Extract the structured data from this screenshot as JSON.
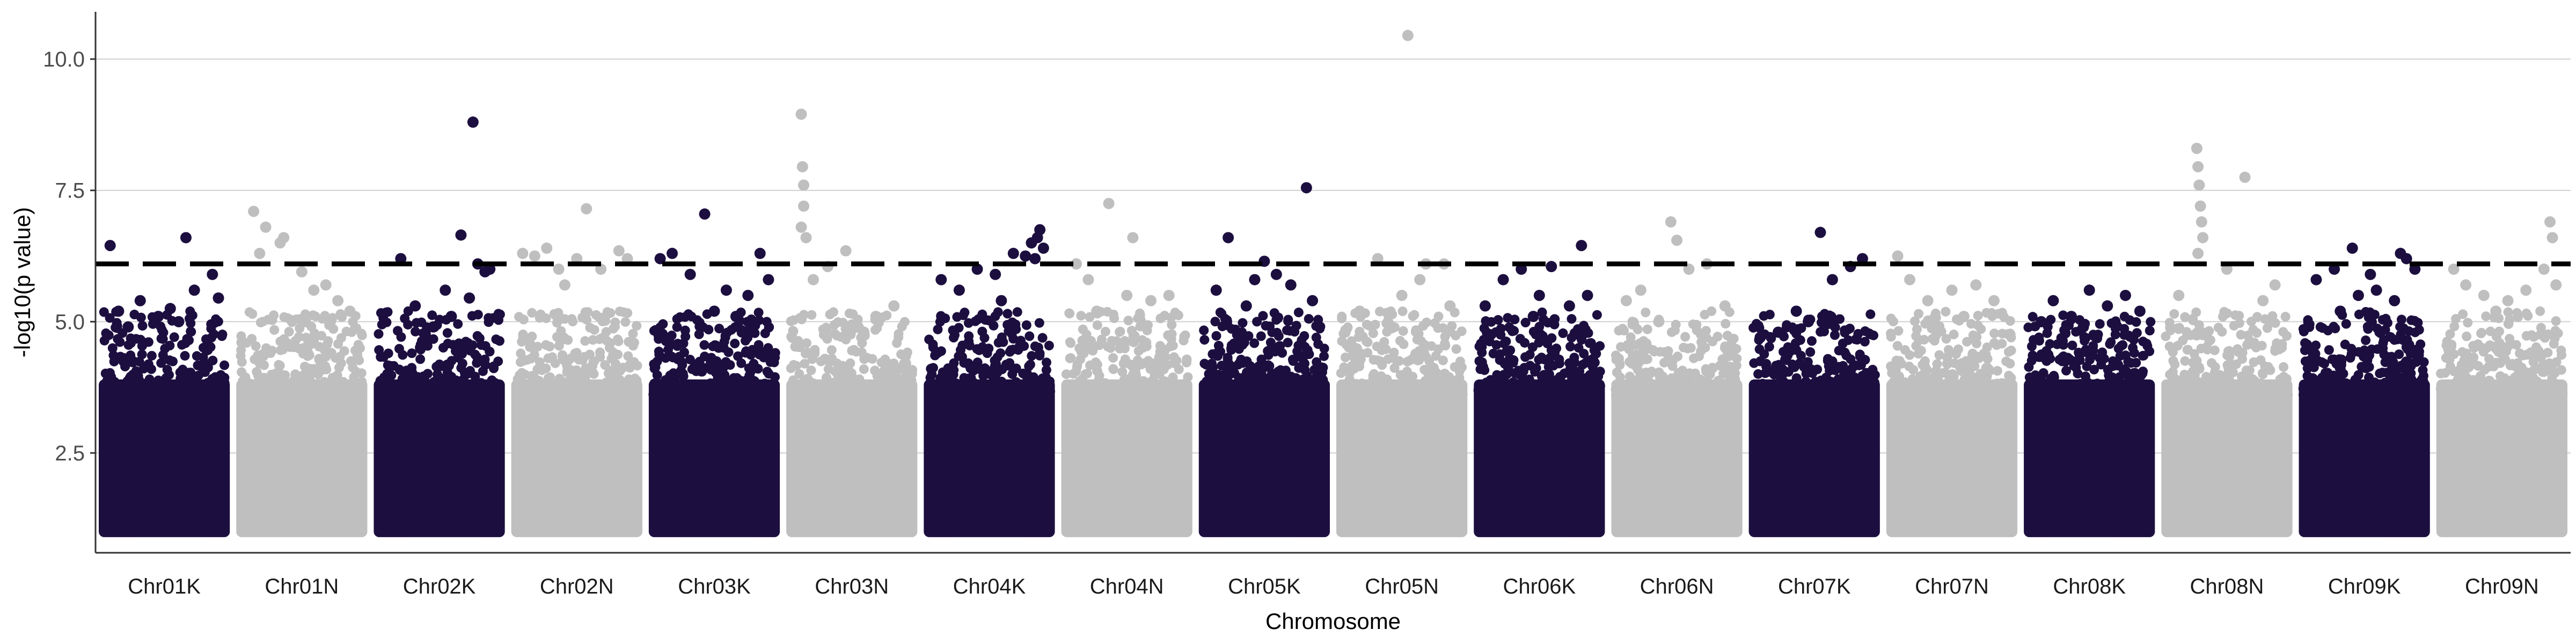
{
  "chart_data": {
    "type": "scatter",
    "subtype": "manhattan",
    "xlabel": "Chromosome",
    "ylabel": "-log10(p value)",
    "ylim": [
      0.6,
      10.9
    ],
    "yticks": [
      2.5,
      5.0,
      7.5,
      10.0
    ],
    "ytick_labels": [
      "2.5",
      "5.0",
      "7.5",
      "10.0"
    ],
    "grid": "horizontal major gridlines",
    "threshold": 6.1,
    "threshold_style": "dashed black line",
    "colors": {
      "K": "#1c0f3f",
      "N": "#bfbfbf",
      "threshold": "#000000",
      "grid": "#d0d0d0"
    },
    "categories": [
      "Chr01K",
      "Chr01N",
      "Chr02K",
      "Chr02N",
      "Chr03K",
      "Chr03N",
      "Chr04K",
      "Chr04N",
      "Chr05K",
      "Chr05N",
      "Chr06K",
      "Chr06N",
      "Chr07K",
      "Chr07N",
      "Chr08K",
      "Chr08N",
      "Chr09K",
      "Chr09N"
    ],
    "series": [
      {
        "values": [
          [
            0.05,
            6.45
          ],
          [
            0.12,
            5.2
          ],
          [
            0.3,
            5.4
          ],
          [
            0.45,
            5.1
          ],
          [
            0.55,
            5.25
          ],
          [
            0.68,
            6.6
          ],
          [
            0.75,
            5.6
          ],
          [
            0.9,
            5.9
          ],
          [
            0.95,
            5.45
          ],
          [
            0.2,
            4.9
          ],
          [
            0.62,
            5.0
          ]
        ]
      },
      {
        "values": [
          [
            0.1,
            7.1
          ],
          [
            0.2,
            6.8
          ],
          [
            0.32,
            6.5
          ],
          [
            0.35,
            6.6
          ],
          [
            0.5,
            5.95
          ],
          [
            0.6,
            5.6
          ],
          [
            0.7,
            5.7
          ],
          [
            0.8,
            5.4
          ],
          [
            0.15,
            6.3
          ],
          [
            0.9,
            5.2
          ]
        ]
      },
      {
        "values": [
          [
            0.18,
            6.2
          ],
          [
            0.3,
            5.3
          ],
          [
            0.55,
            5.6
          ],
          [
            0.68,
            6.65
          ],
          [
            0.78,
            8.8
          ],
          [
            0.82,
            6.1
          ],
          [
            0.88,
            5.95
          ],
          [
            0.92,
            6.0
          ],
          [
            0.6,
            5.1
          ],
          [
            0.45,
            4.9
          ],
          [
            0.75,
            5.45
          ]
        ]
      },
      {
        "values": [
          [
            0.05,
            6.3
          ],
          [
            0.15,
            6.25
          ],
          [
            0.25,
            6.4
          ],
          [
            0.35,
            6.0
          ],
          [
            0.5,
            6.2
          ],
          [
            0.58,
            7.15
          ],
          [
            0.7,
            6.0
          ],
          [
            0.85,
            6.35
          ],
          [
            0.92,
            6.2
          ],
          [
            0.4,
            5.7
          ]
        ]
      },
      {
        "values": [
          [
            0.05,
            6.2
          ],
          [
            0.15,
            6.3
          ],
          [
            0.3,
            5.9
          ],
          [
            0.42,
            7.05
          ],
          [
            0.6,
            5.6
          ],
          [
            0.78,
            5.5
          ],
          [
            0.88,
            6.3
          ],
          [
            0.95,
            5.8
          ],
          [
            0.5,
            5.2
          ],
          [
            0.68,
            5.1
          ]
        ]
      },
      {
        "values": [
          [
            0.08,
            8.95
          ],
          [
            0.09,
            7.95
          ],
          [
            0.1,
            7.6
          ],
          [
            0.1,
            7.2
          ],
          [
            0.08,
            6.8
          ],
          [
            0.12,
            6.6
          ],
          [
            0.18,
            5.8
          ],
          [
            0.3,
            6.05
          ],
          [
            0.45,
            6.35
          ],
          [
            0.7,
            5.1
          ],
          [
            0.85,
            5.3
          ],
          [
            0.6,
            4.8
          ]
        ]
      },
      {
        "values": [
          [
            0.1,
            5.8
          ],
          [
            0.25,
            5.6
          ],
          [
            0.4,
            6.0
          ],
          [
            0.55,
            5.9
          ],
          [
            0.7,
            6.3
          ],
          [
            0.8,
            6.25
          ],
          [
            0.85,
            6.5
          ],
          [
            0.9,
            6.6
          ],
          [
            0.92,
            6.75
          ],
          [
            0.88,
            6.2
          ],
          [
            0.95,
            6.4
          ],
          [
            0.6,
            5.4
          ]
        ]
      },
      {
        "values": [
          [
            0.08,
            6.1
          ],
          [
            0.18,
            5.8
          ],
          [
            0.35,
            7.25
          ],
          [
            0.5,
            5.5
          ],
          [
            0.55,
            6.6
          ],
          [
            0.7,
            5.4
          ],
          [
            0.85,
            5.5
          ],
          [
            0.25,
            5.2
          ]
        ]
      },
      {
        "values": [
          [
            0.1,
            5.6
          ],
          [
            0.2,
            6.6
          ],
          [
            0.35,
            5.3
          ],
          [
            0.5,
            6.15
          ],
          [
            0.6,
            5.9
          ],
          [
            0.72,
            5.7
          ],
          [
            0.85,
            7.55
          ],
          [
            0.9,
            5.4
          ],
          [
            0.42,
            5.8
          ]
        ]
      },
      {
        "values": [
          [
            0.3,
            6.2
          ],
          [
            0.55,
            10.45
          ],
          [
            0.7,
            6.1
          ],
          [
            0.65,
            5.8
          ],
          [
            0.85,
            6.1
          ],
          [
            0.9,
            5.3
          ],
          [
            0.15,
            5.2
          ],
          [
            0.5,
            5.5
          ]
        ]
      },
      {
        "values": [
          [
            0.05,
            5.3
          ],
          [
            0.2,
            5.8
          ],
          [
            0.35,
            6.0
          ],
          [
            0.5,
            5.5
          ],
          [
            0.6,
            6.05
          ],
          [
            0.75,
            5.3
          ],
          [
            0.85,
            6.45
          ],
          [
            0.9,
            5.5
          ],
          [
            0.45,
            5.1
          ]
        ]
      },
      {
        "values": [
          [
            0.08,
            5.4
          ],
          [
            0.2,
            5.6
          ],
          [
            0.45,
            6.9
          ],
          [
            0.5,
            6.55
          ],
          [
            0.6,
            6.0
          ],
          [
            0.75,
            6.1
          ],
          [
            0.9,
            5.3
          ],
          [
            0.35,
            5.0
          ]
        ]
      },
      {
        "values": [
          [
            0.05,
            4.7
          ],
          [
            0.2,
            4.8
          ],
          [
            0.35,
            5.2
          ],
          [
            0.55,
            6.7
          ],
          [
            0.65,
            5.8
          ],
          [
            0.8,
            6.05
          ],
          [
            0.9,
            6.2
          ],
          [
            0.45,
            5.0
          ]
        ]
      },
      {
        "values": [
          [
            0.05,
            6.25
          ],
          [
            0.15,
            5.8
          ],
          [
            0.3,
            5.4
          ],
          [
            0.5,
            5.6
          ],
          [
            0.7,
            5.7
          ],
          [
            0.85,
            5.4
          ],
          [
            0.6,
            5.1
          ]
        ]
      },
      {
        "values": [
          [
            0.1,
            5.0
          ],
          [
            0.2,
            5.4
          ],
          [
            0.35,
            5.1
          ],
          [
            0.5,
            5.6
          ],
          [
            0.65,
            5.3
          ],
          [
            0.8,
            5.5
          ],
          [
            0.92,
            5.2
          ],
          [
            0.45,
            4.9
          ]
        ]
      },
      {
        "values": [
          [
            0.25,
            8.3
          ],
          [
            0.26,
            7.95
          ],
          [
            0.27,
            7.6
          ],
          [
            0.28,
            7.2
          ],
          [
            0.29,
            6.9
          ],
          [
            0.3,
            6.6
          ],
          [
            0.26,
            6.3
          ],
          [
            0.1,
            5.5
          ],
          [
            0.5,
            6.0
          ],
          [
            0.65,
            7.75
          ],
          [
            0.8,
            5.4
          ],
          [
            0.9,
            5.7
          ]
        ]
      },
      {
        "values": [
          [
            0.1,
            5.8
          ],
          [
            0.25,
            6.0
          ],
          [
            0.4,
            6.4
          ],
          [
            0.45,
            5.5
          ],
          [
            0.55,
            5.9
          ],
          [
            0.6,
            5.6
          ],
          [
            0.75,
            5.4
          ],
          [
            0.8,
            6.3
          ],
          [
            0.85,
            6.2
          ],
          [
            0.92,
            6.0
          ],
          [
            0.3,
            5.2
          ]
        ]
      },
      {
        "values": [
          [
            0.1,
            6.0
          ],
          [
            0.2,
            5.7
          ],
          [
            0.35,
            5.5
          ],
          [
            0.55,
            5.4
          ],
          [
            0.7,
            5.6
          ],
          [
            0.85,
            6.0
          ],
          [
            0.9,
            6.9
          ],
          [
            0.92,
            6.6
          ],
          [
            0.95,
            5.7
          ],
          [
            0.45,
            5.2
          ]
        ]
      }
    ]
  }
}
